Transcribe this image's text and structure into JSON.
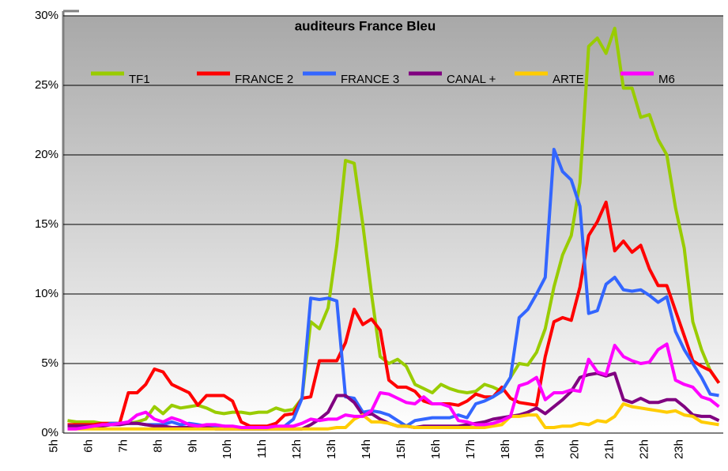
{
  "chart_data": {
    "type": "line",
    "title": "auditeurs France Bleu",
    "categories": [
      "5h",
      null,
      null,
      null,
      "6h",
      null,
      null,
      null,
      "7h",
      null,
      null,
      null,
      "8h",
      null,
      null,
      null,
      "9h",
      null,
      null,
      null,
      "10h",
      null,
      null,
      null,
      "11h",
      null,
      null,
      null,
      "12h",
      null,
      null,
      null,
      "13h",
      null,
      null,
      null,
      "14h",
      null,
      null,
      null,
      "15h",
      null,
      null,
      null,
      "16h",
      null,
      null,
      null,
      "17h",
      null,
      null,
      null,
      "18h",
      null,
      null,
      null,
      "19h",
      null,
      null,
      null,
      "20h",
      null,
      null,
      null,
      "21h",
      null,
      null,
      null,
      "22h",
      null,
      null,
      null,
      "23h",
      null,
      null,
      null
    ],
    "ylim": [
      0,
      30
    ],
    "yticks": [
      {
        "value": 0,
        "label": "0%"
      },
      {
        "value": 5,
        "label": "5%"
      },
      {
        "value": 10,
        "label": "10%"
      },
      {
        "value": 15,
        "label": "15%"
      },
      {
        "value": 20,
        "label": "20%"
      },
      {
        "value": 25,
        "label": "25%"
      },
      {
        "value": 30,
        "label": "30%"
      }
    ],
    "grid": true,
    "legend": "top",
    "series": [
      {
        "name": "TF1",
        "color": "#99cc00",
        "values": [
          0.9,
          0.8,
          0.8,
          0.8,
          0.7,
          0.7,
          0.7,
          0.7,
          0.8,
          1.0,
          1.9,
          1.4,
          2.0,
          1.8,
          1.9,
          2.0,
          1.8,
          1.5,
          1.4,
          1.5,
          1.5,
          1.4,
          1.5,
          1.5,
          1.8,
          1.6,
          1.7,
          2.5,
          8.0,
          7.5,
          9.0,
          13.5,
          19.6,
          19.4,
          15,
          10,
          5.5,
          5.0,
          5.3,
          4.8,
          3.5,
          3.2,
          2.9,
          3.5,
          3.2,
          3.0,
          2.9,
          3.0,
          3.5,
          3.3,
          3.0,
          4.0,
          5.0,
          4.9,
          5.8,
          7.5,
          10.5,
          12.8,
          14.2,
          18,
          27.8,
          28.4,
          27.3,
          29.1,
          24.8,
          24.8,
          22.7,
          22.9,
          21.1,
          20,
          16.2,
          13.3,
          8,
          6,
          4.5,
          3.6
        ]
      },
      {
        "name": "FRANCE 2",
        "color": "#ff0000",
        "values": [
          0.6,
          0.6,
          0.6,
          0.6,
          0.7,
          0.7,
          0.7,
          2.9,
          2.9,
          3.5,
          4.6,
          4.4,
          3.5,
          3.2,
          2.9,
          2.0,
          2.7,
          2.7,
          2.7,
          2.3,
          0.8,
          0.5,
          0.5,
          0.5,
          0.7,
          1.3,
          1.4,
          2.5,
          2.6,
          5.2,
          5.2,
          5.2,
          6.5,
          8.9,
          7.8,
          8.2,
          7.4,
          3.8,
          3.3,
          3.3,
          3.0,
          2.3,
          2.1,
          2.1,
          2.1,
          2.0,
          2.3,
          2.8,
          2.6,
          2.6,
          3.3,
          2.5,
          2.2,
          2.1,
          2.0,
          5.5,
          8.0,
          8.3,
          8.1,
          10.5,
          14.2,
          15.2,
          16.6,
          13.1,
          13.8,
          13.0,
          13.5,
          11.8,
          10.6,
          10.6,
          8.8,
          7.0,
          5.2,
          4.8,
          4.5,
          3.6
        ]
      },
      {
        "name": "FRANCE 3",
        "color": "#3366ff",
        "values": [
          0.5,
          0.5,
          0.5,
          0.4,
          0.5,
          0.7,
          0.7,
          0.7,
          0.7,
          0.6,
          0.6,
          0.6,
          0.8,
          0.6,
          0.7,
          0.6,
          0.5,
          0.5,
          0.5,
          0.4,
          0.3,
          0.3,
          0.3,
          0.3,
          0.4,
          0.5,
          1.0,
          2.5,
          9.7,
          9.6,
          9.7,
          9.5,
          2.6,
          2.5,
          1.5,
          1.6,
          1.5,
          1.3,
          0.9,
          0.5,
          0.9,
          1.0,
          1.1,
          1.1,
          1.1,
          1.3,
          1.1,
          2.1,
          2.3,
          2.6,
          3.0,
          4.0,
          8.3,
          8.9,
          10.0,
          11.2,
          20.4,
          18.8,
          18.2,
          16.3,
          8.6,
          8.8,
          10.7,
          11.2,
          10.3,
          10.2,
          10.3,
          9.9,
          9.4,
          9.8,
          7.3,
          6.0,
          5.0,
          4.0,
          2.8,
          2.7
        ]
      },
      {
        "name": "CANAL +",
        "color": "#800080",
        "values": [
          0.5,
          0.5,
          0.5,
          0.5,
          0.5,
          0.6,
          0.6,
          0.7,
          0.7,
          0.6,
          0.5,
          0.5,
          0.4,
          0.4,
          0.4,
          0.4,
          0.4,
          0.3,
          0.3,
          0.3,
          0.3,
          0.3,
          0.3,
          0.3,
          0.3,
          0.3,
          0.3,
          0.3,
          0.6,
          1.0,
          1.5,
          2.7,
          2.7,
          2.2,
          1.3,
          1.4,
          1.0,
          0.7,
          0.5,
          0.5,
          0.4,
          0.5,
          0.5,
          0.5,
          0.5,
          0.5,
          0.6,
          0.7,
          0.8,
          1.0,
          1.1,
          1.2,
          1.3,
          1.5,
          1.8,
          1.4,
          1.9,
          2.4,
          3.0,
          4.0,
          4.2,
          4.3,
          4.1,
          4.3,
          2.4,
          2.2,
          2.5,
          2.2,
          2.2,
          2.4,
          2.4,
          1.9,
          1.3,
          1.2,
          1.2,
          0.9
        ]
      },
      {
        "name": "ARTE",
        "color": "#ffcc00",
        "values": [
          0.3,
          0.3,
          0.3,
          0.3,
          0.3,
          0.3,
          0.3,
          0.3,
          0.3,
          0.3,
          0.3,
          0.3,
          0.3,
          0.3,
          0.3,
          0.3,
          0.3,
          0.3,
          0.3,
          0.3,
          0.3,
          0.3,
          0.3,
          0.3,
          0.3,
          0.3,
          0.3,
          0.3,
          0.3,
          0.3,
          0.3,
          0.4,
          0.4,
          1.0,
          1.3,
          0.8,
          0.8,
          0.7,
          0.5,
          0.5,
          0.4,
          0.4,
          0.4,
          0.4,
          0.4,
          0.4,
          0.4,
          0.4,
          0.4,
          0.5,
          0.6,
          1.2,
          1.2,
          1.3,
          1.3,
          0.4,
          0.4,
          0.5,
          0.5,
          0.7,
          0.6,
          0.9,
          0.8,
          1.2,
          2.1,
          1.9,
          1.8,
          1.7,
          1.6,
          1.5,
          1.6,
          1.3,
          1.2,
          0.8,
          0.7,
          0.6
        ]
      },
      {
        "name": "M6",
        "color": "#ff00ff",
        "values": [
          0.3,
          0.3,
          0.4,
          0.5,
          0.6,
          0.6,
          0.7,
          0.8,
          1.3,
          1.5,
          1.0,
          0.8,
          1.1,
          0.9,
          0.6,
          0.5,
          0.6,
          0.6,
          0.5,
          0.5,
          0.4,
          0.4,
          0.4,
          0.4,
          0.5,
          0.5,
          0.5,
          0.7,
          1.0,
          0.9,
          1.0,
          1.0,
          1.3,
          1.2,
          1.2,
          1.6,
          2.9,
          2.8,
          2.5,
          2.2,
          2.1,
          2.6,
          2.1,
          2.1,
          1.9,
          0.9,
          0.8,
          0.6,
          0.6,
          0.7,
          0.9,
          1.2,
          3.4,
          3.6,
          4.0,
          2.4,
          2.9,
          2.9,
          3.1,
          3.0,
          5.3,
          4.4,
          4.2,
          6.3,
          5.5,
          5.2,
          5.0,
          5.1,
          6.0,
          6.4,
          3.8,
          3.5,
          3.3,
          2.6,
          2.4,
          1.9
        ]
      }
    ]
  }
}
